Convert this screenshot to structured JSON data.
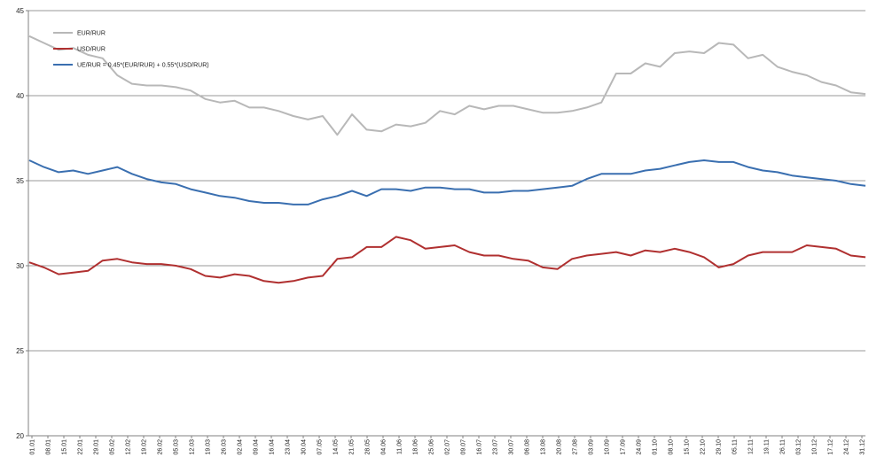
{
  "chart_data": {
    "type": "line",
    "title": "",
    "xlabel": "",
    "ylabel": "",
    "ylim": [
      20,
      45
    ],
    "yticks": [
      20,
      25,
      30,
      35,
      40,
      45
    ],
    "grid": "horizontal",
    "legend_placement": "top-left",
    "x_tick_labels": [
      "01.01",
      "08.01",
      "15.01",
      "22.01",
      "29.01",
      "05.02",
      "12.02",
      "19.02",
      "26.02",
      "05.03",
      "12.03",
      "19.03",
      "26.03",
      "02.04",
      "09.04",
      "16.04",
      "23.04",
      "30.04",
      "07.05",
      "14.05",
      "21.05",
      "28.05",
      "04.06",
      "11.06",
      "18.06",
      "25.06",
      "02.07",
      "09.07",
      "16.07",
      "23.07",
      "30.07",
      "06.08",
      "13.08",
      "20.08",
      "27.08",
      "03.09",
      "10.09",
      "17.09",
      "24.09",
      "01.10",
      "08.10",
      "15.10",
      "22.10",
      "29.10",
      "05.11",
      "12.11",
      "19.11",
      "26.11",
      "03.12",
      "10.12",
      "17.12",
      "24.12",
      "31.12"
    ],
    "series": [
      {
        "name": "EUR/RUR",
        "color": "#b8b8b8",
        "values": [
          43.5,
          43.1,
          42.7,
          42.8,
          42.4,
          42.2,
          41.2,
          40.7,
          40.6,
          40.6,
          40.5,
          40.3,
          39.8,
          39.6,
          39.7,
          39.3,
          39.3,
          39.1,
          38.8,
          38.6,
          38.8,
          37.7,
          38.9,
          38.0,
          37.9,
          38.3,
          38.2,
          38.4,
          39.1,
          38.9,
          39.4,
          39.2,
          39.4,
          39.4,
          39.2,
          39.0,
          39.0,
          39.1,
          39.3,
          39.6,
          41.3,
          41.3,
          41.9,
          41.7,
          42.5,
          42.6,
          42.5,
          43.1,
          43.0,
          42.2,
          42.4,
          41.7,
          41.4,
          41.2,
          40.8,
          40.6,
          40.2,
          40.1
        ]
      },
      {
        "name": "USD/RUR",
        "color": "#b03030",
        "values": [
          30.2,
          29.9,
          29.5,
          29.6,
          29.7,
          30.3,
          30.4,
          30.2,
          30.1,
          30.1,
          30.0,
          29.8,
          29.4,
          29.3,
          29.5,
          29.4,
          29.1,
          29.0,
          29.1,
          29.3,
          29.4,
          30.4,
          30.5,
          31.1,
          31.1,
          31.7,
          31.5,
          31.0,
          31.1,
          31.2,
          30.8,
          30.6,
          30.6,
          30.4,
          30.3,
          29.9,
          29.8,
          30.4,
          30.6,
          30.7,
          30.8,
          30.6,
          30.9,
          30.8,
          31.0,
          30.8,
          30.5,
          29.9,
          30.1,
          30.6,
          30.8,
          30.8,
          30.8,
          31.2,
          31.1,
          31.0,
          30.6,
          30.5
        ]
      },
      {
        "name": "UE/RUR = 0.45*(EUR/RUR) + 0.55*(USD/RUR)",
        "color": "#3a6fb0",
        "values": [
          36.2,
          35.8,
          35.5,
          35.6,
          35.4,
          35.6,
          35.8,
          35.4,
          35.1,
          34.9,
          34.8,
          34.5,
          34.3,
          34.1,
          34.0,
          33.8,
          33.7,
          33.7,
          33.6,
          33.6,
          33.9,
          34.1,
          34.4,
          34.1,
          34.5,
          34.5,
          34.4,
          34.6,
          34.6,
          34.5,
          34.5,
          34.3,
          34.3,
          34.4,
          34.4,
          34.5,
          34.6,
          34.7,
          35.1,
          35.4,
          35.4,
          35.4,
          35.6,
          35.7,
          35.9,
          36.1,
          36.2,
          36.1,
          36.1,
          35.8,
          35.6,
          35.5,
          35.3,
          35.2,
          35.1,
          35.0,
          34.8,
          34.7
        ]
      }
    ]
  }
}
